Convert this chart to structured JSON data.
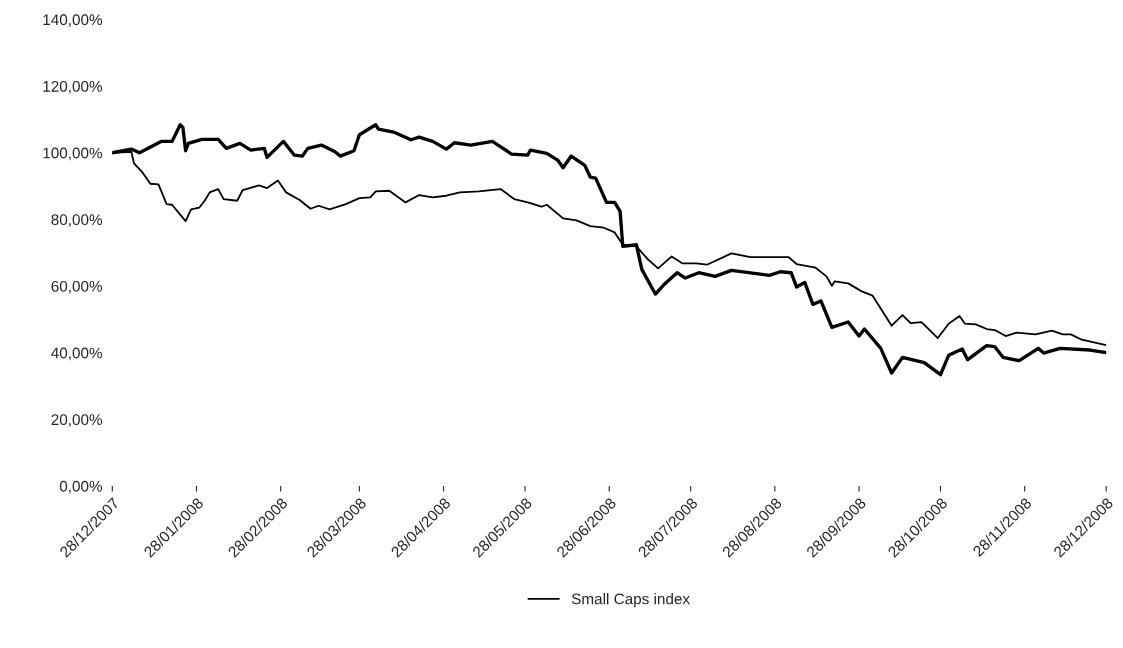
{
  "chart_data": {
    "type": "line",
    "xlim": [
      "2007-12-28",
      "2008-12-28"
    ],
    "xticks": [
      {
        "value": "2007-12-28",
        "label": "28/12/2007"
      },
      {
        "value": "2008-01-28",
        "label": "28/01/2008"
      },
      {
        "value": "2008-02-28",
        "label": "28/02/2008"
      },
      {
        "value": "2008-03-28",
        "label": "28/03/2008"
      },
      {
        "value": "2008-04-28",
        "label": "28/04/2008"
      },
      {
        "value": "2008-05-28",
        "label": "28/05/2008"
      },
      {
        "value": "2008-06-28",
        "label": "28/06/2008"
      },
      {
        "value": "2008-07-28",
        "label": "28/07/2008"
      },
      {
        "value": "2008-08-28",
        "label": "28/08/2008"
      },
      {
        "value": "2008-09-28",
        "label": "28/09/2008"
      },
      {
        "value": "2008-10-28",
        "label": "28/10/2008"
      },
      {
        "value": "2008-11-28",
        "label": "28/11/2008"
      },
      {
        "value": "2008-12-28",
        "label": "28/12/2008"
      }
    ],
    "ylim": [
      0,
      140
    ],
    "yticks": [
      {
        "value": 0,
        "label": "0,00%"
      },
      {
        "value": 20,
        "label": "20,00%"
      },
      {
        "value": 40,
        "label": "40,00%"
      },
      {
        "value": 60,
        "label": "60,00%"
      },
      {
        "value": 80,
        "label": "80,00%"
      },
      {
        "value": 100,
        "label": "100,00%"
      },
      {
        "value": 120,
        "label": "120,00%"
      },
      {
        "value": 140,
        "label": "140,00%"
      }
    ],
    "legend": "bottom",
    "series": [
      {
        "color": "#000000",
        "x": [
          "2007-12-28",
          "2008-01-04",
          "2008-01-07",
          "2008-01-15",
          "2008-01-19",
          "2008-01-22",
          "2008-01-23",
          "2008-01-24",
          "2008-01-25",
          "2008-01-30",
          "2008-02-05",
          "2008-02-08",
          "2008-02-13",
          "2008-02-17",
          "2008-02-22",
          "2008-02-23",
          "2008-02-29",
          "2008-03-04",
          "2008-03-07",
          "2008-03-09",
          "2008-03-14",
          "2008-03-19",
          "2008-03-21",
          "2008-03-26",
          "2008-03-28",
          "2008-04-03",
          "2008-04-04",
          "2008-04-10",
          "2008-04-16",
          "2008-04-19",
          "2008-04-24",
          "2008-04-29",
          "2008-05-02",
          "2008-05-08",
          "2008-05-16",
          "2008-05-23",
          "2008-05-29",
          "2008-05-30",
          "2008-06-05",
          "2008-06-09",
          "2008-06-11",
          "2008-06-14",
          "2008-06-19",
          "2008-06-21",
          "2008-06-23",
          "2008-06-27",
          "2008-06-30",
          "2008-07-02",
          "2008-07-03",
          "2008-07-08",
          "2008-07-10",
          "2008-07-15",
          "2008-07-18",
          "2008-07-23",
          "2008-07-26",
          "2008-07-31",
          "2008-08-06",
          "2008-08-12",
          "2008-08-26",
          "2008-08-30",
          "2008-09-03",
          "2008-09-05",
          "2008-09-08",
          "2008-09-11",
          "2008-09-14",
          "2008-09-18",
          "2008-09-24",
          "2008-09-28",
          "2008-09-30",
          "2008-10-06",
          "2008-10-10",
          "2008-10-14",
          "2008-10-22",
          "2008-10-28",
          "2008-10-31",
          "2008-11-05",
          "2008-11-07",
          "2008-11-14",
          "2008-11-17",
          "2008-11-20",
          "2008-11-26",
          "2008-12-03",
          "2008-12-05",
          "2008-12-11",
          "2008-12-22",
          "2008-12-28"
        ],
        "values": [
          100,
          101.1,
          100,
          103.4,
          103.4,
          108.4,
          107.6,
          100.6,
          102.8,
          104,
          104,
          101.3,
          102.8,
          100.8,
          101.3,
          98.6,
          103.4,
          99.3,
          99,
          101.3,
          102.3,
          100.3,
          99,
          100.6,
          105.4,
          108.4,
          107.1,
          106.1,
          103.9,
          104.7,
          103.4,
          101.1,
          103,
          102.3,
          103.4,
          99.6,
          99.3,
          100.8,
          99.8,
          97.8,
          95.5,
          99,
          96.2,
          92.7,
          92.4,
          85.1,
          85.1,
          82.4,
          71.9,
          72.4,
          65,
          57.6,
          60.3,
          64,
          62.4,
          64,
          62.9,
          64.7,
          63.2,
          64.3,
          64,
          59.7,
          61.1,
          54.5,
          55.5,
          47.6,
          49.2,
          45,
          47.1,
          41.3,
          33.9,
          38.6,
          37,
          33.4,
          39.2,
          41.1,
          37.9,
          42.1,
          41.8,
          38.6,
          37.6,
          41.3,
          39.9,
          41.3,
          40.8,
          40
        ]
      },
      {
        "name": "Small Caps index",
        "color": "#000000",
        "x": [
          "2007-12-28",
          "2008-01-04",
          "2008-01-05",
          "2008-01-08",
          "2008-01-11",
          "2008-01-14",
          "2008-01-17",
          "2008-01-19",
          "2008-01-24",
          "2008-01-26",
          "2008-01-29",
          "2008-01-31",
          "2008-02-02",
          "2008-02-05",
          "2008-02-07",
          "2008-02-12",
          "2008-02-14",
          "2008-02-20",
          "2008-02-23",
          "2008-02-27",
          "2008-03-01",
          "2008-03-06",
          "2008-03-10",
          "2008-03-13",
          "2008-03-17",
          "2008-03-23",
          "2008-03-28",
          "2008-04-01",
          "2008-04-03",
          "2008-04-08",
          "2008-04-14",
          "2008-04-19",
          "2008-04-24",
          "2008-04-29",
          "2008-05-04",
          "2008-05-11",
          "2008-05-19",
          "2008-05-24",
          "2008-05-29",
          "2008-06-03",
          "2008-06-05",
          "2008-06-11",
          "2008-06-16",
          "2008-06-21",
          "2008-06-26",
          "2008-06-30",
          "2008-07-03",
          "2008-07-08",
          "2008-07-12",
          "2008-07-16",
          "2008-07-21",
          "2008-07-25",
          "2008-07-30",
          "2008-08-03",
          "2008-08-12",
          "2008-08-19",
          "2008-09-02",
          "2008-09-05",
          "2008-09-12",
          "2008-09-16",
          "2008-09-18",
          "2008-09-19",
          "2008-09-24",
          "2008-09-29",
          "2008-10-03",
          "2008-10-10",
          "2008-10-14",
          "2008-10-17",
          "2008-10-21",
          "2008-10-27",
          "2008-10-31",
          "2008-11-04",
          "2008-11-06",
          "2008-11-10",
          "2008-11-14",
          "2008-11-17",
          "2008-11-21",
          "2008-11-25",
          "2008-12-02",
          "2008-12-08",
          "2008-12-12",
          "2008-12-15",
          "2008-12-19",
          "2008-12-28"
        ],
        "values": [
          100,
          100.3,
          96.8,
          94.2,
          90.7,
          90.5,
          84.6,
          84.4,
          79.5,
          83,
          83.5,
          85.6,
          88.2,
          89.1,
          86.1,
          85.6,
          88.8,
          90.2,
          89.4,
          91.7,
          88.1,
          85.8,
          83.2,
          84.1,
          83,
          84.6,
          86.4,
          86.6,
          88.4,
          88.6,
          85.1,
          87.3,
          86.6,
          87.1,
          88.1,
          88.4,
          89.1,
          86.1,
          85.1,
          83.8,
          84.4,
          80.3,
          79.7,
          78,
          77.5,
          76.1,
          72.4,
          71.9,
          68.2,
          65.3,
          68.9,
          66.8,
          66.8,
          66.4,
          69.8,
          68.7,
          68.7,
          66.6,
          65.5,
          62.9,
          60.1,
          61.4,
          60.8,
          58.4,
          57.1,
          48.1,
          51.3,
          48.9,
          49.2,
          44.4,
          48.7,
          51,
          48.7,
          48.5,
          47.1,
          46.8,
          45,
          46,
          45.5,
          46.6,
          45.5,
          45.5,
          43.9,
          42.3
        ]
      }
    ]
  }
}
